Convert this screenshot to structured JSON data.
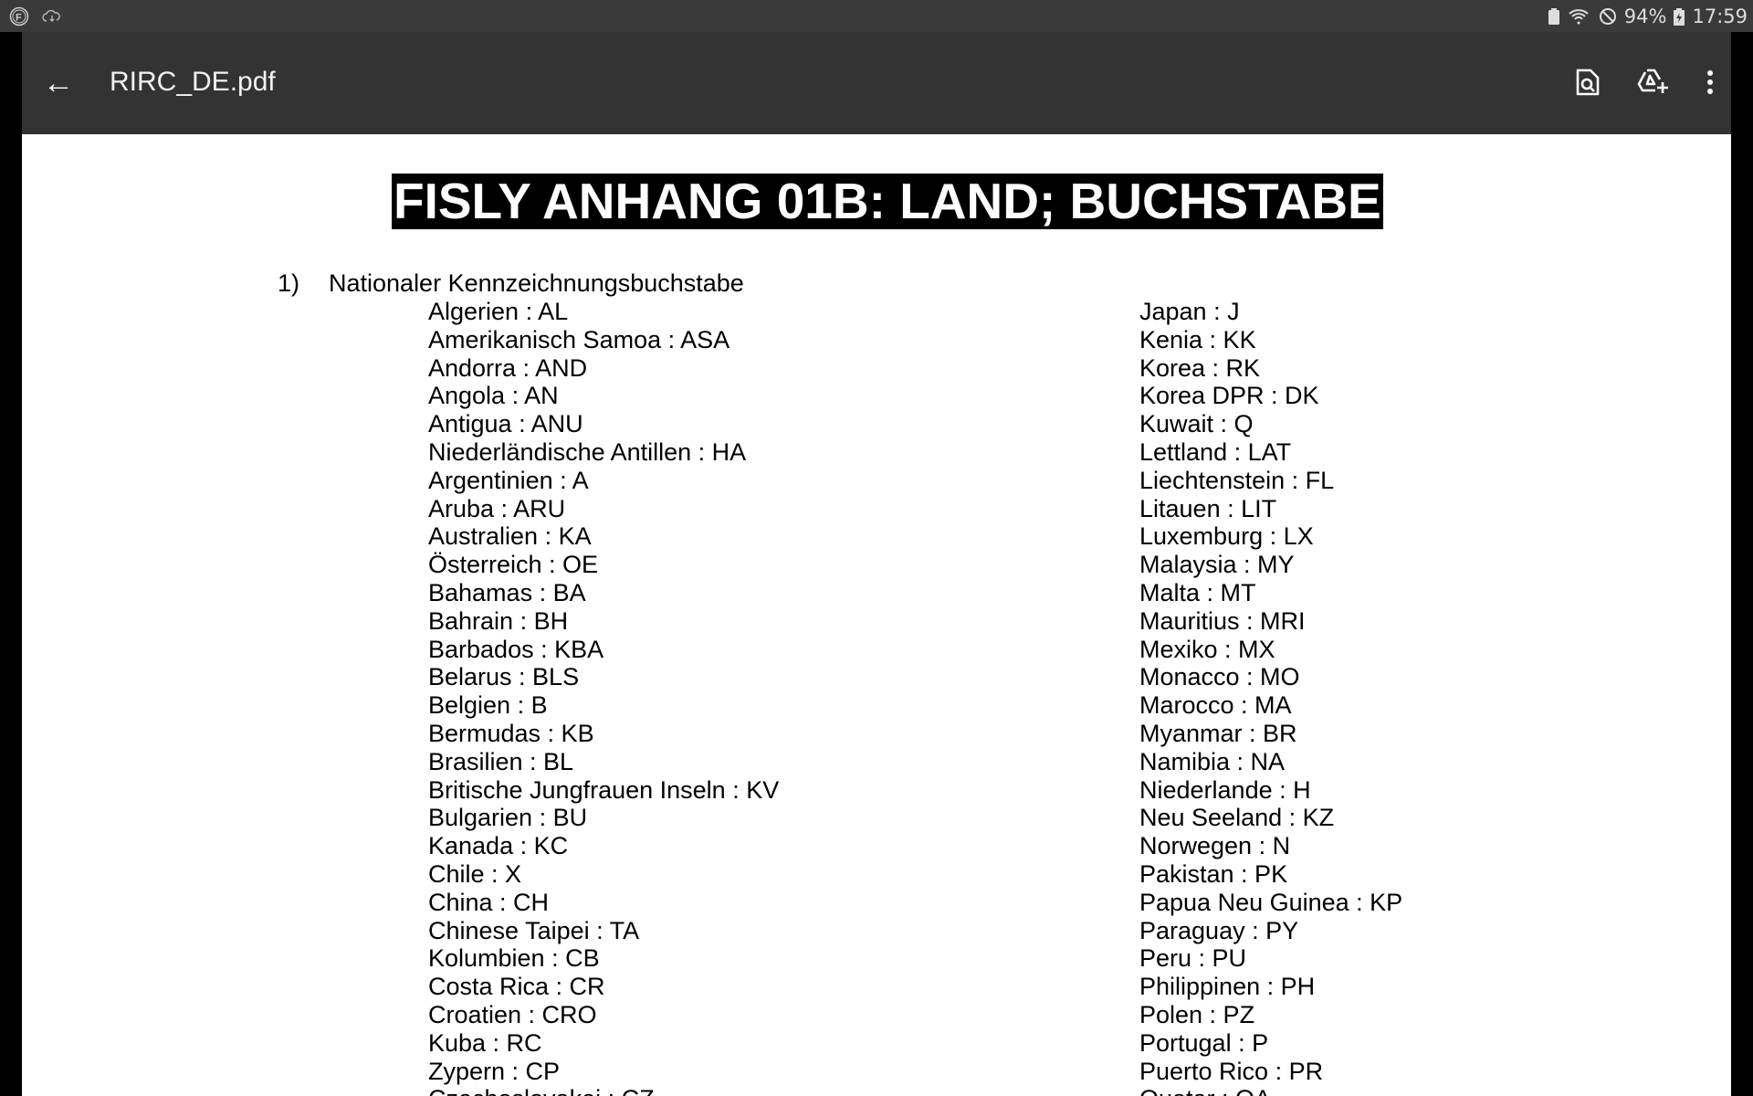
{
  "status_bar": {
    "battery_percent": "94%",
    "time": "17:59",
    "icons": [
      "f-app-icon",
      "cloud-download-icon",
      "battery-saver-icon",
      "wifi-icon",
      "do-not-disturb-icon",
      "battery-charging-icon"
    ]
  },
  "toolbar": {
    "title": "RIRC_DE.pdf",
    "icons": [
      "back-arrow-icon",
      "find-in-document-icon",
      "add-to-drive-icon",
      "more-vert-icon"
    ]
  },
  "document": {
    "title": "FISLY ANHANG 01B: LAND; BUCHSTABE",
    "section_number": "1)",
    "section_heading": "Nationaler Kennzeichnungsbuchstabe",
    "left_column": [
      "Algerien : AL",
      "Amerikanisch Samoa : ASA",
      "Andorra : AND",
      "Angola : AN",
      "Antigua : ANU",
      "Niederländische Antillen : HA",
      "Argentinien : A",
      "Aruba : ARU",
      "Australien : KA",
      "Österreich : OE",
      "Bahamas : BA",
      "Bahrain : BH",
      "Barbados : KBA",
      "Belarus : BLS",
      "Belgien : B",
      "Bermudas : KB",
      "Brasilien : BL",
      "Britische Jungfrauen Inseln : KV",
      "Bulgarien : BU",
      "Kanada : KC",
      "Chile : X",
      "China : CH",
      "Chinese Taipei : TA",
      "Kolumbien : CB",
      "Costa Rica : CR",
      "Croatien : CRO",
      "Kuba : RC",
      "Zypern : CP",
      "Czechoslovakei : CZ"
    ],
    "right_column": [
      "Japan : J",
      "Kenia : KK",
      "Korea : RK",
      "Korea DPR : DK",
      "Kuwait : Q",
      "Lettland : LAT",
      "Liechtenstein : FL",
      "Litauen : LIT",
      "Luxemburg : LX",
      "Malaysia : MY",
      "Malta : MT",
      "Mauritius : MRI",
      "Mexiko : MX",
      "Monacco : MO",
      "Marocco : MA",
      "Myanmar : BR",
      "Namibia : NA",
      "Niederlande : H",
      "Neu Seeland : KZ",
      "Norwegen : N",
      "Pakistan : PK",
      "Papua Neu Guinea : KP",
      "Paraguay : PY",
      "Peru : PU",
      "Philippinen : PH",
      "Polen : PZ",
      "Portugal : P",
      "Puerto Rico : PR",
      "Quatar : QA"
    ]
  }
}
